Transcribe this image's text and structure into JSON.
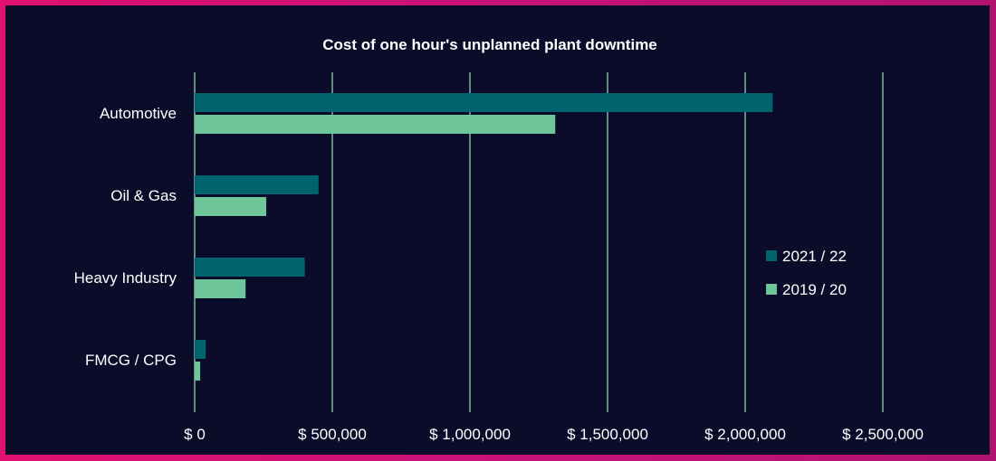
{
  "chart_data": {
    "type": "bar",
    "orientation": "horizontal",
    "title": "Cost of one hour's unplanned plant downtime",
    "categories": [
      "Automotive",
      "Oil & Gas",
      "Heavy Industry",
      "FMCG / CPG"
    ],
    "series": [
      {
        "name": "2021 / 22",
        "color": "#00646e",
        "values": [
          2100000,
          450000,
          400000,
          40000
        ]
      },
      {
        "name": "2019 / 20",
        "color": "#6fc69a",
        "values": [
          1310000,
          260000,
          185000,
          20000
        ]
      }
    ],
    "xlim": [
      0,
      2500000
    ],
    "x_ticks": [
      0,
      500000,
      1000000,
      1500000,
      2000000,
      2500000
    ],
    "x_tick_labels": [
      "$ 0",
      "$ 500,000",
      "$ 1,000,000",
      "$ 1,500,000",
      "$ 2,000,000",
      "$ 2,500,000"
    ],
    "xlabel": "",
    "ylabel": "",
    "grid": true,
    "legend_position": "right"
  }
}
